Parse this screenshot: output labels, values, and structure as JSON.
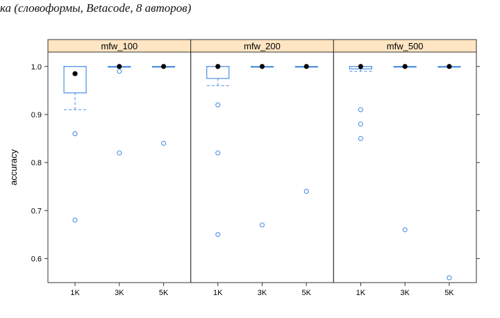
{
  "caption": "ка (словоформы, Betacode, 8 авторов)",
  "chart_data": {
    "type": "boxplot",
    "ylabel": "accuracy",
    "ylim": [
      0.55,
      1.03
    ],
    "yticks": [
      0.6,
      0.7,
      0.8,
      0.9,
      1.0
    ],
    "ytick_labels": [
      "0.6",
      "0.7",
      "0.8",
      "0.9",
      "1.0"
    ],
    "categories": [
      "1K",
      "3K",
      "5K"
    ],
    "colors": {
      "strip": "#ffe5c2",
      "box": "#4a8ee0",
      "median": "#000000",
      "frame": "#333333"
    },
    "panels": [
      {
        "name": "mfw_100",
        "boxes": [
          {
            "category": "1K",
            "q1": 0.945,
            "q3": 1.0,
            "median": 0.985,
            "whisker_low": 0.91,
            "whisker_high": 1.0,
            "outliers": [
              0.86,
              0.68
            ]
          },
          {
            "category": "3K",
            "q1": 1.0,
            "q3": 1.0,
            "median": 1.0,
            "whisker_low": 1.0,
            "whisker_high": 1.0,
            "outliers": [
              0.99,
              0.82
            ]
          },
          {
            "category": "5K",
            "q1": 1.0,
            "q3": 1.0,
            "median": 1.0,
            "whisker_low": 1.0,
            "whisker_high": 1.0,
            "outliers": [
              0.84
            ]
          }
        ]
      },
      {
        "name": "mfw_200",
        "boxes": [
          {
            "category": "1K",
            "q1": 0.975,
            "q3": 1.0,
            "median": 1.0,
            "whisker_low": 0.96,
            "whisker_high": 1.0,
            "outliers": [
              0.92,
              0.82,
              0.65
            ]
          },
          {
            "category": "3K",
            "q1": 1.0,
            "q3": 1.0,
            "median": 1.0,
            "whisker_low": 1.0,
            "whisker_high": 1.0,
            "outliers": [
              0.67
            ]
          },
          {
            "category": "5K",
            "q1": 1.0,
            "q3": 1.0,
            "median": 1.0,
            "whisker_low": 1.0,
            "whisker_high": 1.0,
            "outliers": [
              0.74
            ]
          }
        ]
      },
      {
        "name": "mfw_500",
        "boxes": [
          {
            "category": "1K",
            "q1": 0.995,
            "q3": 1.0,
            "median": 1.0,
            "whisker_low": 0.99,
            "whisker_high": 1.0,
            "outliers": [
              0.91,
              0.88,
              0.85
            ]
          },
          {
            "category": "3K",
            "q1": 1.0,
            "q3": 1.0,
            "median": 1.0,
            "whisker_low": 1.0,
            "whisker_high": 1.0,
            "outliers": [
              0.66
            ]
          },
          {
            "category": "5K",
            "q1": 1.0,
            "q3": 1.0,
            "median": 1.0,
            "whisker_low": 1.0,
            "whisker_high": 1.0,
            "outliers": [
              0.56
            ]
          }
        ]
      }
    ]
  }
}
